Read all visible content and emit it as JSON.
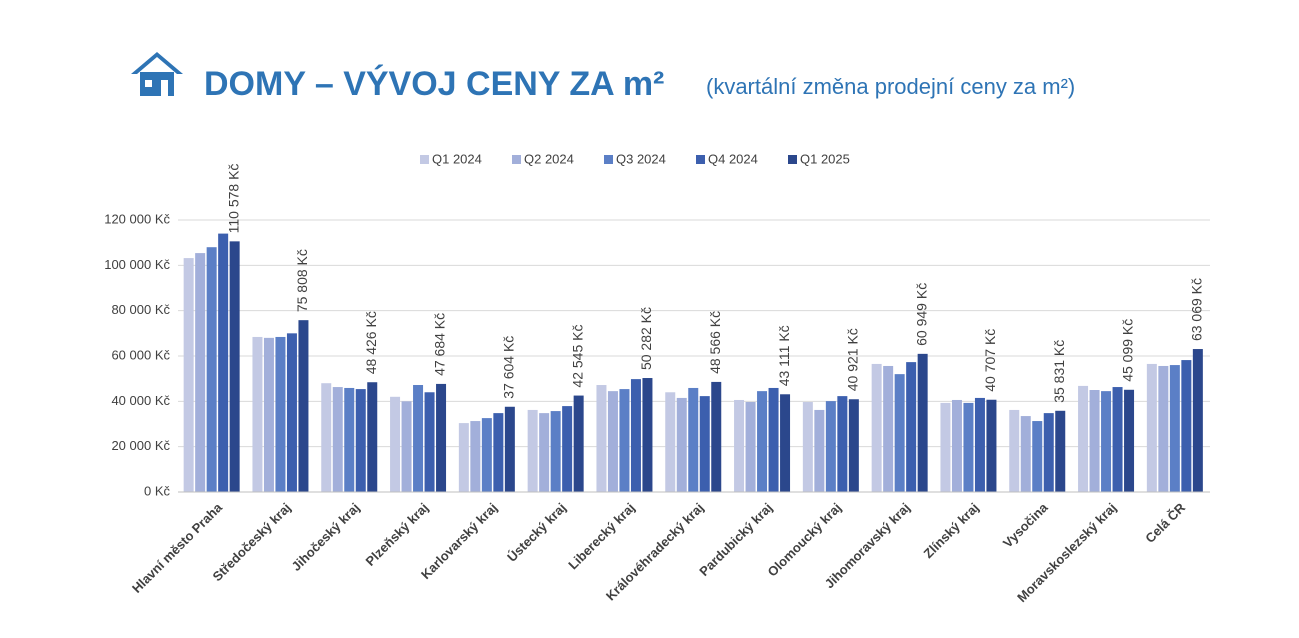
{
  "chart_data": {
    "type": "bar",
    "title": "DOMY – VÝVOJ CENY ZA m²",
    "subtitle": "(kvartální změna prodejní ceny za m²)",
    "categories": [
      "Hlavní město Praha",
      "Středočeský kraj",
      "Jihočeský kraj",
      "Plzeňský kraj",
      "Karlovarský kraj",
      "Ústecký kraj",
      "Liberecký kraj",
      "Královéhradecký kraj",
      "Pardubický kraj",
      "Olomoucký kraj",
      "Jihomoravský kraj",
      "Zlínský kraj",
      "Vysočina",
      "Moravskoslezský kraj",
      "Celá ČR"
    ],
    "series": [
      {
        "name": "Q1 2024",
        "color": "#c3c9e4",
        "values": [
          103200,
          68400,
          48000,
          42000,
          30400,
          36200,
          47200,
          44000,
          40600,
          39700,
          56500,
          39300,
          36200,
          46800,
          56500
        ]
      },
      {
        "name": "Q2 2024",
        "color": "#a2afda",
        "values": [
          105400,
          68000,
          46300,
          40000,
          31300,
          34800,
          44500,
          41500,
          39700,
          36200,
          55600,
          40600,
          33500,
          45000,
          55600
        ]
      },
      {
        "name": "Q3 2024",
        "color": "#5b7fc6",
        "values": [
          108000,
          68400,
          45900,
          47200,
          32600,
          35700,
          45400,
          45900,
          44500,
          40100,
          52000,
          39300,
          31300,
          44500,
          56000
        ]
      },
      {
        "name": "Q4 2024",
        "color": "#3c5fae",
        "values": [
          114000,
          70000,
          45400,
          44000,
          34800,
          37900,
          49800,
          42300,
          45900,
          42300,
          57300,
          41500,
          34800,
          46300,
          58200
        ]
      },
      {
        "name": "Q1 2025",
        "color": "#2b478c",
        "values": [
          110578,
          75808,
          48426,
          47684,
          37604,
          42545,
          50282,
          48566,
          43111,
          40921,
          60949,
          40707,
          35831,
          45099,
          63069
        ],
        "value_labels": [
          "110 578 Kč",
          "75 808 Kč",
          "48 426 Kč",
          "47 684 Kč",
          "37 604 Kč",
          "42 545 Kč",
          "50 282 Kč",
          "48 566 Kč",
          "43 111 Kč",
          "40 921 Kč",
          "60 949 Kč",
          "40 707 Kč",
          "35 831 Kč",
          "45 099 Kč",
          "63 069 Kč"
        ]
      }
    ],
    "ylim": [
      0,
      120000
    ],
    "yticks": [
      {
        "value": 0,
        "label": "0 Kč"
      },
      {
        "value": 20000,
        "label": "20 000 Kč"
      },
      {
        "value": 40000,
        "label": "40 000 Kč"
      },
      {
        "value": 60000,
        "label": "60 000 Kč"
      },
      {
        "value": 80000,
        "label": "80 000 Kč"
      },
      {
        "value": 100000,
        "label": "100 000 Kč"
      },
      {
        "value": 120000,
        "label": "120 000 Kč"
      }
    ],
    "grid": true,
    "legend": "top"
  }
}
